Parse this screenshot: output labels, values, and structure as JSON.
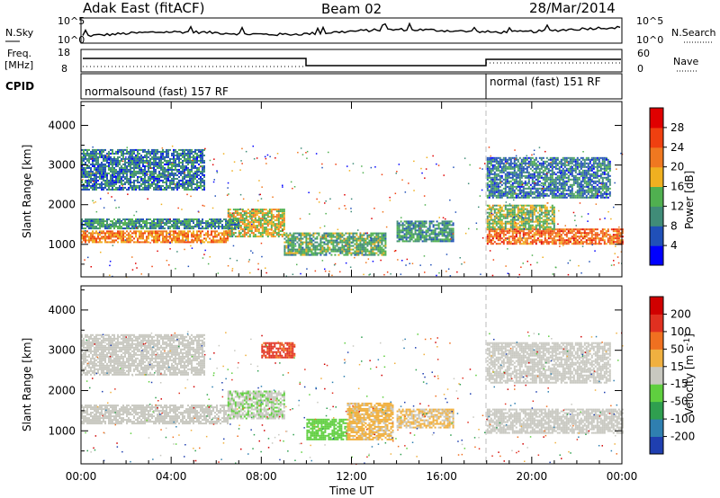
{
  "header": {
    "title": "Adak East (fitACF)",
    "beam": "Beam 02",
    "date": "28/Mar/2014"
  },
  "panels": {
    "noise": {
      "left_label": "N.Sky",
      "right_label": "N.Search",
      "left_ticks": [
        "10^5",
        "10^0"
      ],
      "right_ticks": [
        "10^5",
        "10^0"
      ]
    },
    "freq": {
      "left_label_1": "Freq.",
      "left_label_2": "[MHz]",
      "left_ticks": [
        "18",
        "8"
      ],
      "right_label": "Nave",
      "right_ticks": [
        "60",
        "0"
      ]
    },
    "cpid": {
      "label": "CPID",
      "segment_1": "normalsound (fast) 157 RF",
      "segment_2": "normal (fast) 151 RF"
    }
  },
  "colors": {
    "power": [
      "#0000ff",
      "#2050b8",
      "#408c78",
      "#50b050",
      "#f0b020",
      "#f07820",
      "#f04010",
      "#e00000"
    ],
    "velocity": [
      "#1f3fb0",
      "#2f7fb0",
      "#2f9f4f",
      "#5fcf3f",
      "#c8c8c0",
      "#f0b040",
      "#f07020",
      "#e03020",
      "#d00000"
    ]
  },
  "chart_data": [
    {
      "type": "heatmap",
      "ylabel": "Slant Range [km]",
      "xlabel": "Time UT",
      "x_ticks": [
        "00:00",
        "04:00",
        "08:00",
        "12:00",
        "16:00",
        "20:00",
        "00:00"
      ],
      "y_ticks": [
        "1000",
        "2000",
        "3000",
        "4000"
      ],
      "ylim": [
        180,
        4600
      ],
      "xlim_hours": [
        0,
        24
      ],
      "colorbar": {
        "label": "Power [dB]",
        "ticks": [
          "28",
          "24",
          "20",
          "16",
          "12",
          "8",
          "4"
        ],
        "range": [
          0,
          30
        ]
      },
      "bands": [
        {
          "t0": 0.0,
          "t1": 6.5,
          "r0": 1050,
          "r1": 1350,
          "value": 20
        },
        {
          "t0": 6.5,
          "t1": 9.0,
          "r0": 1200,
          "r1": 1900,
          "value": 16
        },
        {
          "t0": 0.0,
          "t1": 7.0,
          "r0": 1400,
          "r1": 1650,
          "value": 10
        },
        {
          "t0": 0.0,
          "t1": 5.5,
          "r0": 2400,
          "r1": 3400,
          "value": 8
        },
        {
          "t0": 9.0,
          "t1": 13.5,
          "r0": 750,
          "r1": 1300,
          "value": 12
        },
        {
          "t0": 14.0,
          "t1": 16.5,
          "r0": 1100,
          "r1": 1600,
          "value": 10
        },
        {
          "t0": 18.0,
          "t1": 24.0,
          "r0": 1000,
          "r1": 1400,
          "value": 22
        },
        {
          "t0": 18.0,
          "t1": 21.0,
          "r0": 1400,
          "r1": 2000,
          "value": 14
        },
        {
          "t0": 18.0,
          "t1": 23.5,
          "r0": 2200,
          "r1": 3200,
          "value": 8
        }
      ]
    },
    {
      "type": "heatmap",
      "ylabel": "Slant Range [km]",
      "xlabel": "Time UT",
      "x_ticks": [
        "00:00",
        "04:00",
        "08:00",
        "12:00",
        "16:00",
        "20:00",
        "00:00"
      ],
      "y_ticks": [
        "1000",
        "2000",
        "3000",
        "4000"
      ],
      "ylim": [
        180,
        4600
      ],
      "xlim_hours": [
        0,
        24
      ],
      "colorbar": {
        "label": "Velocity [m s^-1]",
        "ticks": [
          "200",
          "100",
          "50",
          "15",
          "-15",
          "-50",
          "-100",
          "-200"
        ],
        "range": [
          -250,
          250
        ]
      },
      "bands": [
        {
          "t0": 0.0,
          "t1": 6.5,
          "r0": 1200,
          "r1": 1650,
          "value": 0
        },
        {
          "t0": 6.5,
          "t1": 9.0,
          "r0": 1300,
          "r1": 2000,
          "value": -20
        },
        {
          "t0": 0.0,
          "t1": 5.5,
          "r0": 2400,
          "r1": 3400,
          "value": 5
        },
        {
          "t0": 8.0,
          "t1": 9.5,
          "r0": 2800,
          "r1": 3200,
          "value": 150
        },
        {
          "t0": 10.0,
          "t1": 11.8,
          "r0": 800,
          "r1": 1300,
          "value": -60
        },
        {
          "t0": 11.8,
          "t1": 13.8,
          "r0": 800,
          "r1": 1700,
          "value": 40
        },
        {
          "t0": 14.0,
          "t1": 16.5,
          "r0": 1100,
          "r1": 1550,
          "value": 30
        },
        {
          "t0": 18.0,
          "t1": 24.0,
          "r0": 950,
          "r1": 1550,
          "value": 0
        },
        {
          "t0": 18.0,
          "t1": 23.5,
          "r0": 2200,
          "r1": 3200,
          "value": 0
        }
      ]
    }
  ]
}
